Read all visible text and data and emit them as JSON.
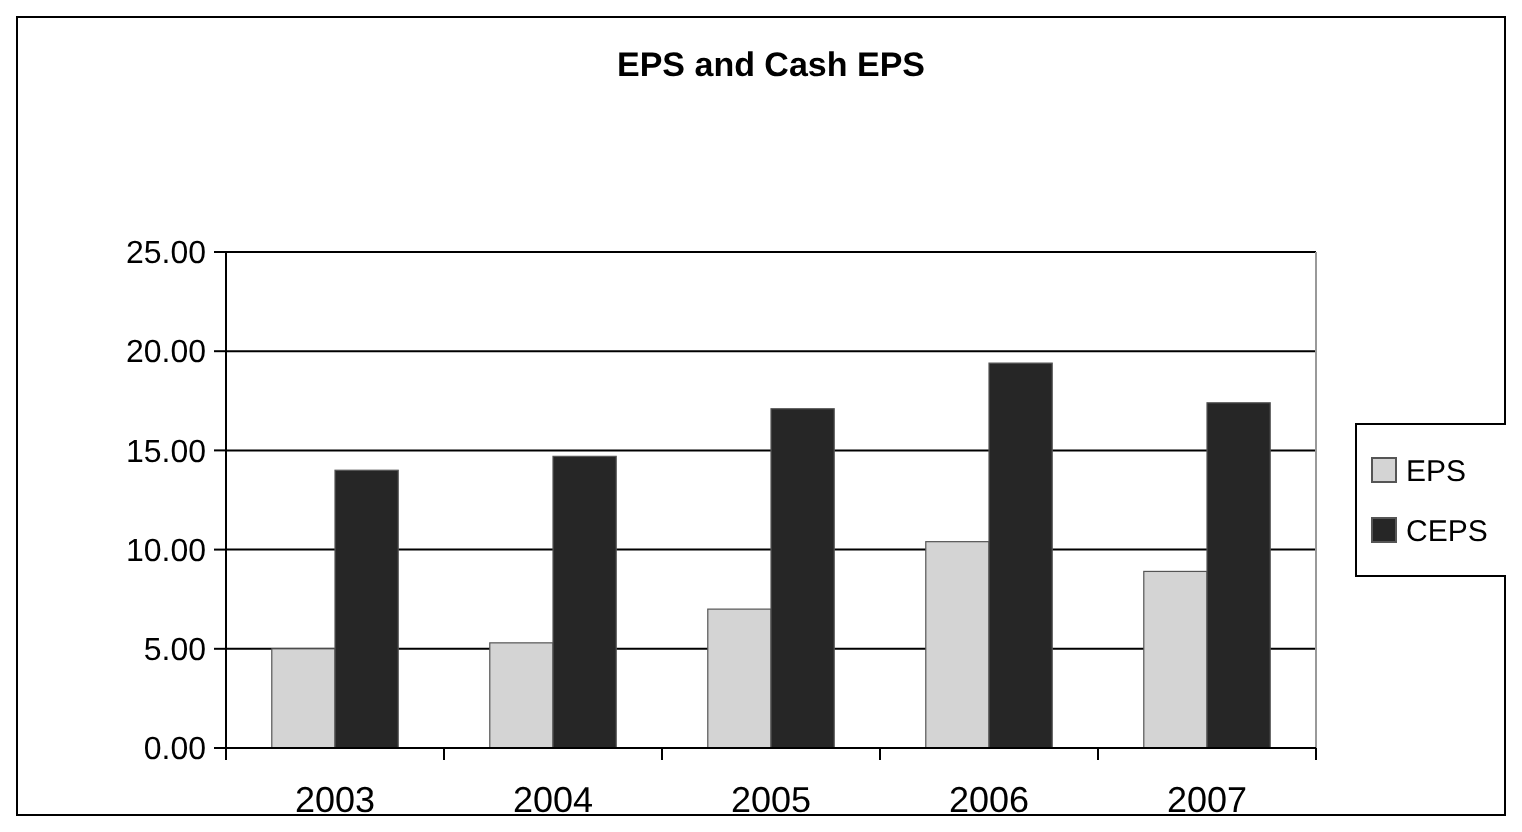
{
  "chart_data": {
    "type": "bar",
    "title": "EPS and Cash EPS",
    "categories": [
      "2003",
      "2004",
      "2005",
      "2006",
      "2007"
    ],
    "series": [
      {
        "name": "EPS",
        "color": "#d4d4d4",
        "values": [
          5.0,
          5.3,
          7.0,
          10.4,
          8.9
        ]
      },
      {
        "name": "CEPS",
        "color": "#262626",
        "values": [
          14.0,
          14.7,
          17.1,
          19.4,
          17.4
        ]
      }
    ],
    "ylim": [
      0,
      25
    ],
    "yticks": [
      {
        "value": 0,
        "label": "0.00"
      },
      {
        "value": 5,
        "label": "5.00"
      },
      {
        "value": 10,
        "label": "10.00"
      },
      {
        "value": 15,
        "label": "15.00"
      },
      {
        "value": 20,
        "label": "20.00"
      },
      {
        "value": 25,
        "label": "25.00"
      }
    ],
    "grid": "y",
    "legend": "right"
  }
}
